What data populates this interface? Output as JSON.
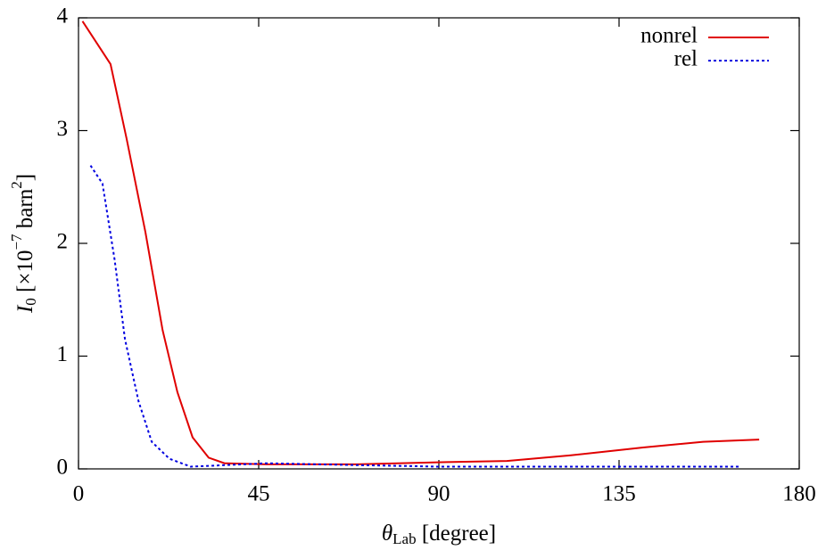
{
  "chart_data": {
    "type": "line",
    "x_label": [
      {
        "text": "θ",
        "style": "italic"
      },
      {
        "text": "Lab",
        "style": "sub"
      },
      {
        "text": " [degree]",
        "style": "normal"
      }
    ],
    "y_label": [
      {
        "text": "I",
        "style": "italic"
      },
      {
        "text": "0",
        "style": "sub"
      },
      {
        "text": " [×10",
        "style": "normal"
      },
      {
        "text": "−7",
        "style": "sup"
      },
      {
        "text": " barn",
        "style": "normal"
      },
      {
        "text": "2",
        "style": "sup"
      },
      {
        "text": "]",
        "style": "normal"
      }
    ],
    "xlim": [
      0,
      180
    ],
    "xticks": [
      0,
      45,
      90,
      135,
      180
    ],
    "ylim": [
      0,
      4
    ],
    "yticks": [
      0,
      1,
      2,
      3,
      4
    ],
    "legend": "upper right",
    "series": [
      {
        "name": "nonrel",
        "color": "#e00000",
        "dash": "solid",
        "x": [
          1,
          8,
          12,
          16.7,
          21,
          24.7,
          28.5,
          32.5,
          36.5,
          47,
          69.5,
          92,
          107,
          123,
          141,
          156,
          170
        ],
        "values": [
          3.97,
          3.59,
          2.93,
          2.1,
          1.23,
          0.68,
          0.28,
          0.1,
          0.05,
          0.04,
          0.04,
          0.06,
          0.07,
          0.12,
          0.19,
          0.24,
          0.26
        ]
      },
      {
        "name": "rel",
        "color": "#0000e0",
        "dash": "dotted",
        "x": [
          3,
          6,
          9,
          11.6,
          15,
          18.3,
          22.7,
          28,
          47,
          60,
          90,
          135,
          165
        ],
        "values": [
          2.69,
          2.53,
          1.86,
          1.15,
          0.6,
          0.24,
          0.09,
          0.02,
          0.05,
          0.04,
          0.02,
          0.02,
          0.02
        ]
      }
    ]
  }
}
